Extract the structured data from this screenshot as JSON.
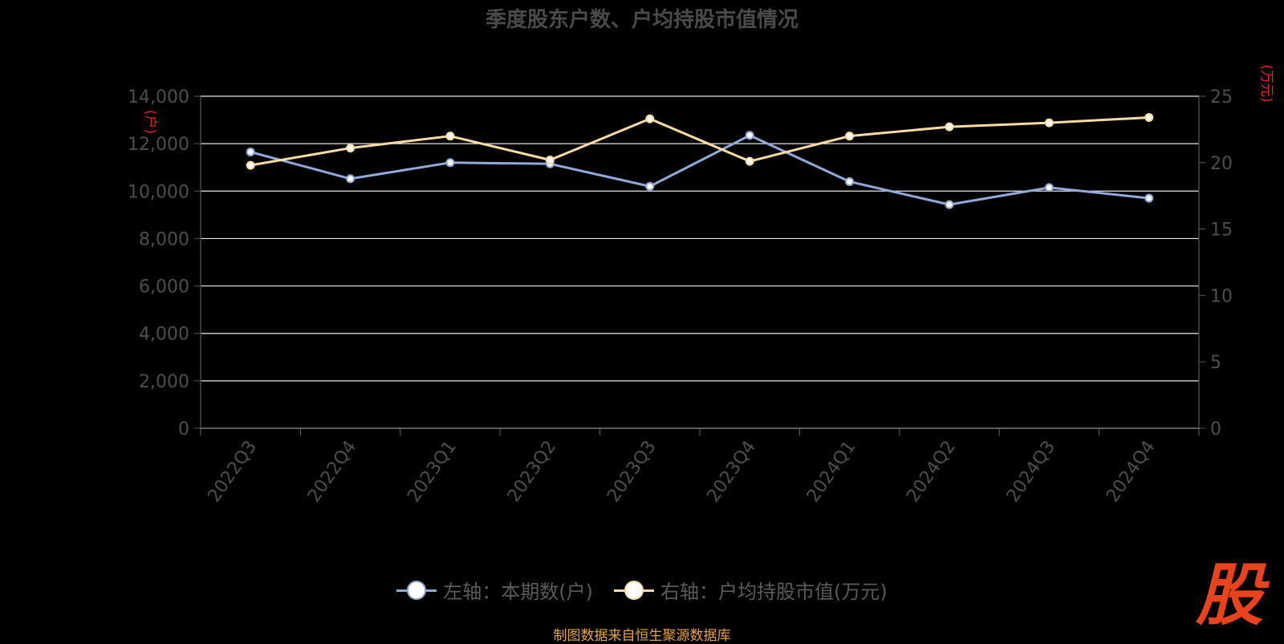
{
  "page": {
    "title": "季度股东户数、户均持股市值情况",
    "source_note": "制图数据来自恒生聚源数据库",
    "logo_text": "股"
  },
  "chart_data": {
    "type": "line",
    "title": "季度股东户数、户均持股市值情况",
    "categories": [
      "2022Q3",
      "2022Q4",
      "2023Q1",
      "2023Q2",
      "2023Q3",
      "2023Q4",
      "2024Q1",
      "2024Q2",
      "2024Q3",
      "2024Q4"
    ],
    "left_axis": {
      "label": "(户)",
      "ylim": [
        0,
        14000
      ],
      "ticks": [
        0,
        2000,
        4000,
        6000,
        8000,
        10000,
        12000,
        14000
      ],
      "tick_labels": [
        "0",
        "2,000",
        "4,000",
        "6,000",
        "8,000",
        "10,000",
        "12,000",
        "14,000"
      ]
    },
    "right_axis": {
      "label": "(万元)",
      "ylim": [
        0,
        25
      ],
      "ticks": [
        0,
        5,
        10,
        15,
        20,
        25
      ],
      "tick_labels": [
        "0",
        "5",
        "10",
        "15",
        "20",
        "25"
      ]
    },
    "series": [
      {
        "name": "左轴：本期数(户)",
        "axis": "left",
        "color": "#8fa9d8",
        "values": [
          11650,
          10520,
          11200,
          11150,
          10200,
          12350,
          10400,
          9430,
          10150,
          9700
        ]
      },
      {
        "name": "右轴：户均持股市值(万元)",
        "axis": "right",
        "color": "#f7dba0",
        "values": [
          19.8,
          21.1,
          22.0,
          20.2,
          23.3,
          20.1,
          22.0,
          22.7,
          23.0,
          23.4
        ]
      }
    ],
    "grid": true,
    "legend_position": "bottom"
  }
}
